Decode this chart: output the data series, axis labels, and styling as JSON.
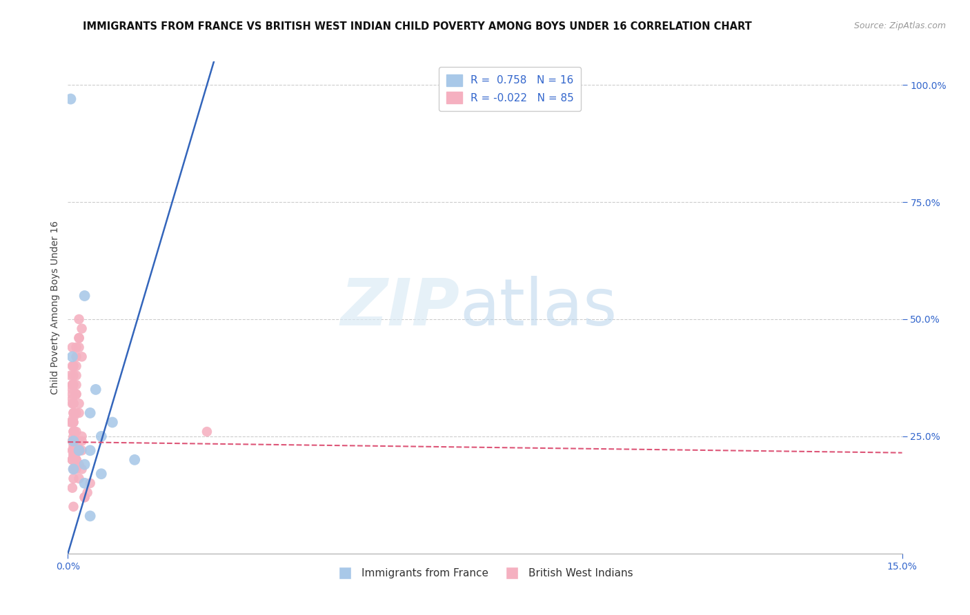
{
  "title": "IMMIGRANTS FROM FRANCE VS BRITISH WEST INDIAN CHILD POVERTY AMONG BOYS UNDER 16 CORRELATION CHART",
  "source": "Source: ZipAtlas.com",
  "ylabel": "Child Poverty Among Boys Under 16",
  "xlim": [
    0.0,
    0.15
  ],
  "ylim": [
    0.0,
    1.05
  ],
  "ytick_vals": [
    0.25,
    0.5,
    0.75,
    1.0
  ],
  "ytick_labels": [
    "25.0%",
    "50.0%",
    "75.0%",
    "100.0%"
  ],
  "xtick_vals": [
    0.0,
    0.15
  ],
  "xtick_labels": [
    "0.0%",
    "15.0%"
  ],
  "r_blue": 0.758,
  "n_blue": 16,
  "r_pink": -0.022,
  "n_pink": 85,
  "blue_dot_color": "#a8c8e8",
  "pink_dot_color": "#f5b0c0",
  "blue_line_color": "#3365bb",
  "pink_line_color": "#dd5577",
  "legend_label_blue": "Immigrants from France",
  "legend_label_pink": "British West Indians",
  "blue_line_x0": 0.0,
  "blue_line_y0": 0.0,
  "blue_line_x1": 0.025,
  "blue_line_y1": 1.0,
  "pink_line_x0": 0.0,
  "pink_line_x1": 0.15,
  "pink_line_y0": 0.238,
  "pink_line_y1": 0.215,
  "blue_x": [
    0.002,
    0.001,
    0.003,
    0.0005,
    0.003,
    0.005,
    0.004,
    0.006,
    0.008,
    0.012,
    0.006,
    0.004,
    0.003,
    0.001,
    0.004,
    0.0008
  ],
  "blue_y": [
    0.22,
    0.18,
    0.15,
    0.97,
    0.55,
    0.35,
    0.3,
    0.25,
    0.28,
    0.2,
    0.17,
    0.22,
    0.19,
    0.24,
    0.08,
    0.42
  ],
  "pink_x": [
    0.001,
    0.0005,
    0.001,
    0.0008,
    0.001,
    0.0015,
    0.001,
    0.0012,
    0.0008,
    0.0015,
    0.001,
    0.002,
    0.0008,
    0.0005,
    0.001,
    0.0015,
    0.001,
    0.0008,
    0.0015,
    0.001,
    0.002,
    0.0015,
    0.0025,
    0.002,
    0.0015,
    0.001,
    0.0008,
    0.001,
    0.0015,
    0.0008,
    0.002,
    0.001,
    0.0015,
    0.0008,
    0.001,
    0.002,
    0.0015,
    0.001,
    0.0008,
    0.0025,
    0.0015,
    0.001,
    0.0008,
    0.001,
    0.0015,
    0.0008,
    0.002,
    0.001,
    0.0015,
    0.0008,
    0.001,
    0.002,
    0.0015,
    0.001,
    0.0008,
    0.0025,
    0.0015,
    0.025,
    0.0008,
    0.003,
    0.0015,
    0.001,
    0.002,
    0.0015,
    0.001,
    0.004,
    0.003,
    0.0025,
    0.002,
    0.0035,
    0.0015,
    0.002,
    0.001,
    0.0015,
    0.002,
    0.0025,
    0.0015,
    0.001,
    0.002,
    0.0015,
    0.001,
    0.0008,
    0.0025,
    0.002,
    0.0015
  ],
  "pink_y": [
    0.32,
    0.28,
    0.25,
    0.35,
    0.3,
    0.22,
    0.4,
    0.26,
    0.33,
    0.42,
    0.28,
    0.44,
    0.2,
    0.38,
    0.29,
    0.36,
    0.22,
    0.44,
    0.38,
    0.3,
    0.46,
    0.34,
    0.48,
    0.32,
    0.26,
    0.4,
    0.34,
    0.36,
    0.44,
    0.28,
    0.5,
    0.32,
    0.4,
    0.22,
    0.38,
    0.46,
    0.3,
    0.24,
    0.36,
    0.42,
    0.2,
    0.26,
    0.32,
    0.28,
    0.24,
    0.36,
    0.3,
    0.22,
    0.34,
    0.4,
    0.26,
    0.22,
    0.24,
    0.18,
    0.2,
    0.24,
    0.22,
    0.26,
    0.14,
    0.12,
    0.18,
    0.16,
    0.22,
    0.2,
    0.1,
    0.15,
    0.12,
    0.18,
    0.16,
    0.13,
    0.22,
    0.19,
    0.21,
    0.2,
    0.22,
    0.25,
    0.24,
    0.23,
    0.22,
    0.23,
    0.21,
    0.24,
    0.22,
    0.24,
    0.23
  ]
}
